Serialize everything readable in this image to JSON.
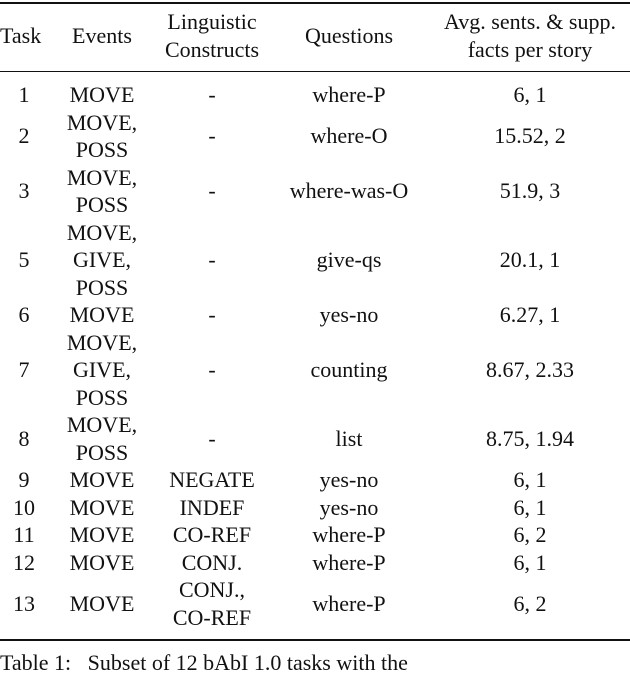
{
  "table": {
    "columns": [
      "Task",
      "Events",
      "Linguistic\nConstructs",
      "Questions",
      "Avg. sents. & supp.\nfacts per story"
    ],
    "rows": [
      [
        "1",
        "MOVE",
        "-",
        "where-P",
        "6, 1"
      ],
      [
        "2",
        "MOVE,\nPOSS",
        "-",
        "where-O",
        "15.52, 2"
      ],
      [
        "3",
        "MOVE,\nPOSS",
        "-",
        "where-was-O",
        "51.9, 3"
      ],
      [
        "5",
        "MOVE,\nGIVE,\nPOSS",
        "-",
        "give-qs",
        "20.1, 1"
      ],
      [
        "6",
        "MOVE",
        "-",
        "yes-no",
        "6.27, 1"
      ],
      [
        "7",
        "MOVE,\nGIVE,\nPOSS",
        "-",
        "counting",
        "8.67, 2.33"
      ],
      [
        "8",
        "MOVE,\nPOSS",
        "-",
        "list",
        "8.75, 1.94"
      ],
      [
        "9",
        "MOVE",
        "NEGATE",
        "yes-no",
        "6, 1"
      ],
      [
        "10",
        "MOVE",
        "INDEF",
        "yes-no",
        "6, 1"
      ],
      [
        "11",
        "MOVE",
        "CO-REF",
        "where-P",
        "6, 2"
      ],
      [
        "12",
        "MOVE",
        "CONJ.",
        "where-P",
        "6, 1"
      ],
      [
        "13",
        "MOVE",
        "CONJ.,\nCO-REF",
        "where-P",
        "6, 2"
      ]
    ],
    "caption": "Table 1:   Subset of 12 bAbI 1.0 tasks with the"
  }
}
